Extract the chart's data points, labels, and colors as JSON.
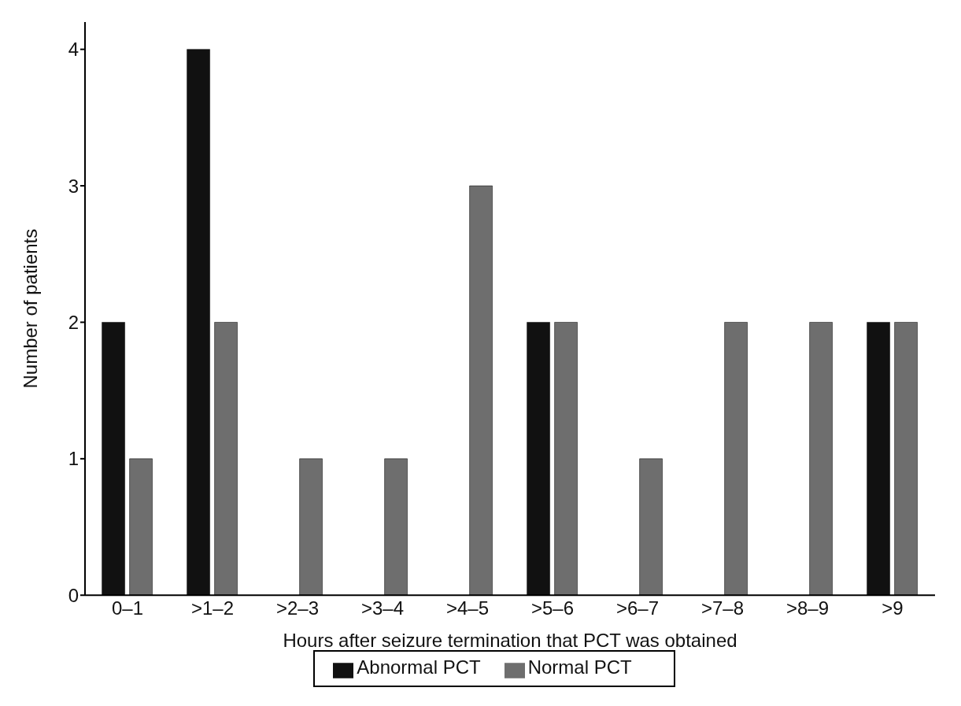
{
  "chart_data": {
    "type": "bar",
    "xlabel": "Hours after seizure termination that PCT was obtained",
    "ylabel": "Number of patients",
    "categories": [
      "0–1",
      ">1–2",
      ">2–3",
      ">3–4",
      ">4–5",
      ">5–6",
      ">6–7",
      ">7–8",
      ">8–9",
      ">9"
    ],
    "series": [
      {
        "name": "Abnormal PCT",
        "color": "#111111",
        "values": [
          2,
          4,
          0,
          0,
          0,
          2,
          0,
          0,
          0,
          2
        ]
      },
      {
        "name": "Normal PCT",
        "color": "#6e6e6e",
        "values": [
          1,
          2,
          1,
          1,
          3,
          2,
          1,
          2,
          2,
          2
        ]
      }
    ],
    "ylim": [
      0,
      4.2
    ],
    "yticks": [
      0,
      1,
      2,
      3,
      4
    ],
    "grid": false,
    "legend": "bottom"
  }
}
